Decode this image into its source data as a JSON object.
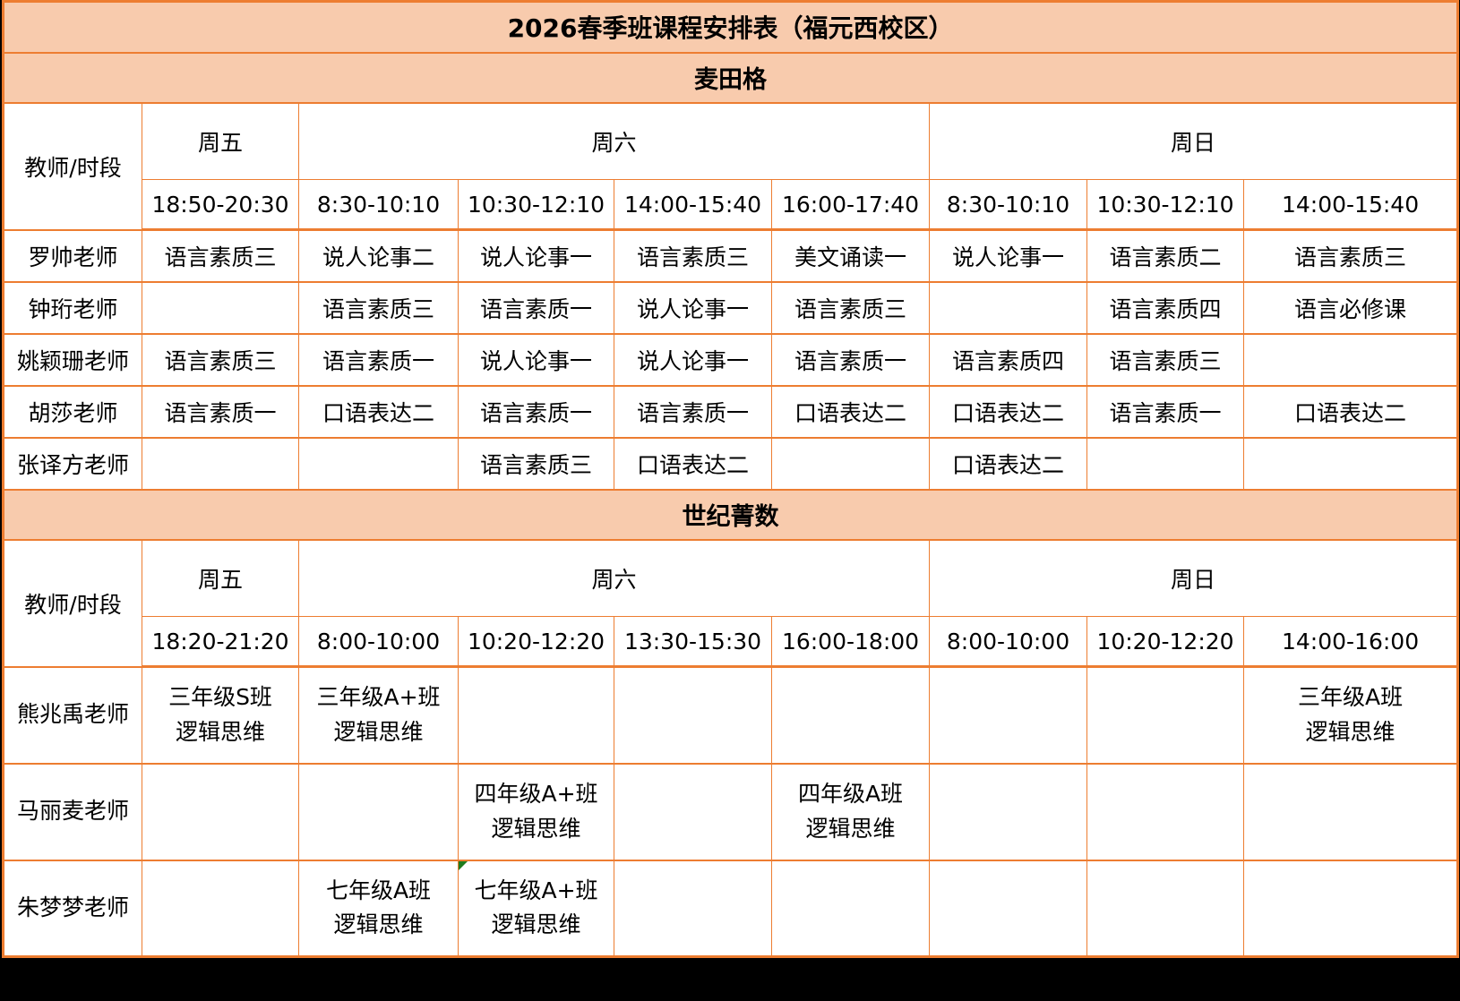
{
  "title": "2026春季班课程安排表（福元西校区）",
  "colors": {
    "band_bg": "#F8CBAD",
    "border_orange": "#ED7D31",
    "cell_bg": "#FFFFFF",
    "text": "#000000",
    "comment_marker_green": "#1E7B1E"
  },
  "sections": [
    {
      "name": "麦田格",
      "corner_label": "教师/时段",
      "days": [
        {
          "label": "周五",
          "span": 1
        },
        {
          "label": "周六",
          "span": 4
        },
        {
          "label": "周日",
          "span": 3
        }
      ],
      "times": [
        "18:50-20:30",
        "8:30-10:10",
        "10:30-12:10",
        "14:00-15:40",
        "16:00-17:40",
        "8:30-10:10",
        "10:30-12:10",
        "14:00-15:40"
      ],
      "rows": [
        {
          "teacher": "罗帅老师",
          "cells": [
            "语言素质三",
            "说人论事二",
            "说人论事一",
            "语言素质三",
            "美文诵读一",
            "说人论事一",
            "语言素质二",
            "语言素质三"
          ]
        },
        {
          "teacher": "钟珩老师",
          "cells": [
            "",
            "语言素质三",
            "语言素质一",
            "说人论事一",
            "语言素质三",
            "",
            "语言素质四",
            "语言必修课"
          ]
        },
        {
          "teacher": "姚颖珊老师",
          "cells": [
            "语言素质三",
            "语言素质一",
            "说人论事一",
            "说人论事一",
            "语言素质一",
            "语言素质四",
            "语言素质三",
            ""
          ]
        },
        {
          "teacher": "胡莎老师",
          "cells": [
            "语言素质一",
            "口语表达二",
            "语言素质一",
            "语言素质一",
            "口语表达二",
            "口语表达二",
            "语言素质一",
            "口语表达二"
          ]
        },
        {
          "teacher": "张译方老师",
          "cells": [
            "",
            "",
            "语言素质三",
            "口语表达二",
            "",
            "口语表达二",
            "",
            ""
          ]
        }
      ]
    },
    {
      "name": "世纪菁数",
      "corner_label": "教师/时段",
      "days": [
        {
          "label": "周五",
          "span": 1
        },
        {
          "label": "周六",
          "span": 4
        },
        {
          "label": "周日",
          "span": 3
        }
      ],
      "times": [
        "18:20-21:20",
        "8:00-10:00",
        "10:20-12:20",
        "13:30-15:30",
        "16:00-18:00",
        "8:00-10:00",
        "10:20-12:20",
        "14:00-16:00"
      ],
      "rows": [
        {
          "teacher": "熊兆禹老师",
          "cells": [
            "三年级S班\n逻辑思维",
            "三年级A+班\n逻辑思维",
            "",
            "",
            "",
            "",
            "",
            "三年级A班\n逻辑思维"
          ]
        },
        {
          "teacher": "马丽麦老师",
          "cells": [
            "",
            "",
            "四年级A+班\n逻辑思维",
            "",
            "四年级A班\n逻辑思维",
            "",
            "",
            ""
          ]
        },
        {
          "teacher": "朱梦梦老师",
          "cells": [
            "",
            "七年级A班\n逻辑思维",
            "七年级A+班\n逻辑思维",
            "",
            "",
            "",
            "",
            ""
          ]
        }
      ]
    }
  ]
}
